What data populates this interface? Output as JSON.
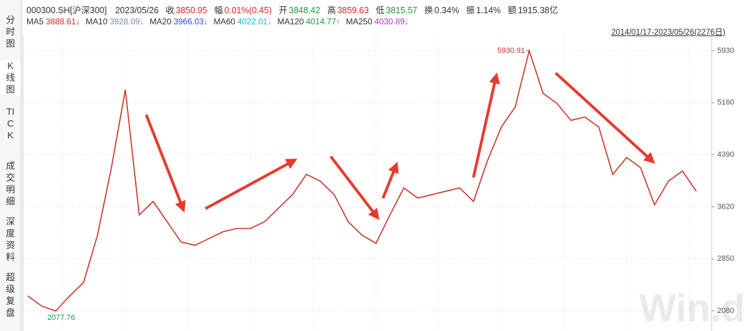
{
  "header": {
    "code": "000300.SH[沪深300]",
    "date": "2023/05/26",
    "items": [
      {
        "label": "收",
        "value": "3850.95",
        "color": "#d9262c"
      },
      {
        "label": "幅",
        "value": "0.01%(0.45)",
        "color": "#d9262c"
      },
      {
        "label": "开",
        "value": "3848.42",
        "color": "#1a9a3a"
      },
      {
        "label": "高",
        "value": "3859.63",
        "color": "#d9262c"
      },
      {
        "label": "低",
        "value": "3815.57",
        "color": "#1a9a3a"
      },
      {
        "label": "换",
        "value": "0.34%",
        "color": "#333333"
      },
      {
        "label": "振",
        "value": "1.14%",
        "color": "#333333"
      },
      {
        "label": "额",
        "value": "1915.38亿",
        "color": "#333333"
      }
    ],
    "ma": [
      {
        "label": "MA5",
        "value": "3888.61↓",
        "color": "#d9262c"
      },
      {
        "label": "MA10",
        "value": "3928.09↓",
        "color": "#7a8aa6"
      },
      {
        "label": "MA20",
        "value": "3966.03↓",
        "color": "#2b4fc7"
      },
      {
        "label": "MA60",
        "value": "4022.01↓",
        "color": "#1fb5d6"
      },
      {
        "label": "MA120",
        "value": "4014.77↑",
        "color": "#1a9a3a"
      },
      {
        "label": "MA250",
        "value": "4030.89↓",
        "color": "#b03bc7"
      }
    ],
    "range": "2014/01/17-2023/05/26(2276日)"
  },
  "sidebar": [
    "分时图",
    "K线图",
    "TICK",
    "成交明细",
    "深度资料",
    "超级复盘"
  ],
  "watermark": "Win.d",
  "chart_data": {
    "type": "line",
    "ylim": [
      1900,
      6100
    ],
    "yticks": [
      2080,
      2850,
      3620,
      4390,
      5160,
      5930
    ],
    "grid": true,
    "annotations": {
      "high": "5930.91",
      "low": "2077.76"
    },
    "series": [
      {
        "name": "000300.SH",
        "color": "#c8352b",
        "values": [
          2300,
          2150,
          2077.76,
          2300,
          2500,
          3200,
          4200,
          5353,
          3500,
          3700,
          3400,
          3100,
          3050,
          3150,
          3250,
          3300,
          3300,
          3400,
          3600,
          3800,
          4100,
          4000,
          3800,
          3400,
          3200,
          3080,
          3500,
          3900,
          3750,
          3800,
          3850,
          3900,
          3700,
          4300,
          4800,
          5100,
          5930.91,
          5300,
          5150,
          4900,
          4950,
          4800,
          4100,
          4350,
          4200,
          3650,
          4000,
          4150,
          3850
        ]
      }
    ]
  }
}
